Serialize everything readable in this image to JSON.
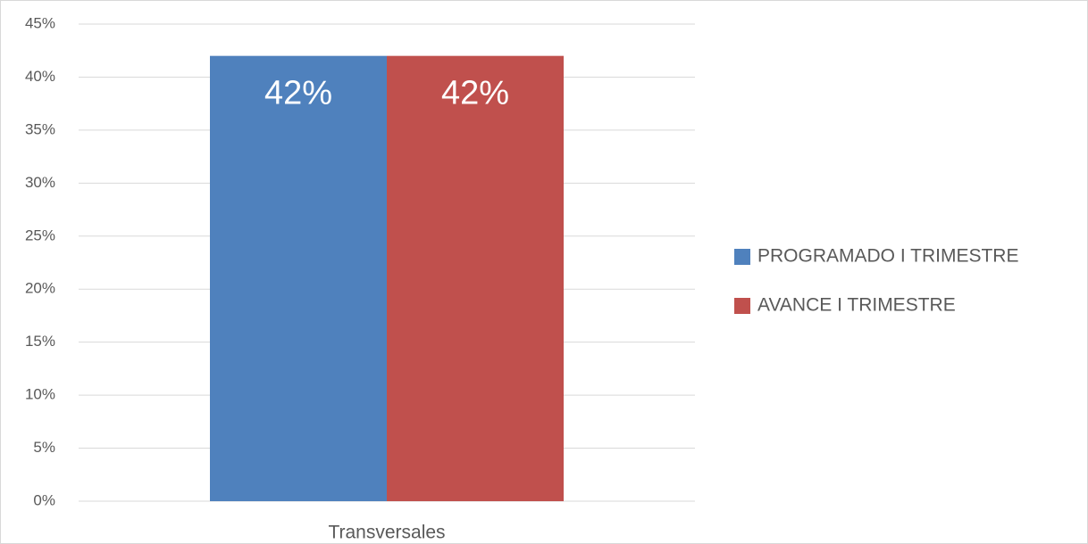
{
  "chart_data": {
    "type": "bar",
    "categories": [
      "Transversales"
    ],
    "series": [
      {
        "name": "PROGRAMADO I TRIMESTRE",
        "color": "#4f81bd",
        "values": [
          42
        ],
        "value_labels": [
          "42%"
        ]
      },
      {
        "name": "AVANCE I TRIMESTRE",
        "color": "#c0504d",
        "values": [
          42
        ],
        "value_labels": [
          "42%"
        ]
      }
    ],
    "ylim": [
      0,
      45
    ],
    "yticks": [
      {
        "value": 0,
        "label": "0%"
      },
      {
        "value": 5,
        "label": "5%"
      },
      {
        "value": 10,
        "label": "10%"
      },
      {
        "value": 15,
        "label": "15%"
      },
      {
        "value": 20,
        "label": "20%"
      },
      {
        "value": 25,
        "label": "25%"
      },
      {
        "value": 30,
        "label": "30%"
      },
      {
        "value": 35,
        "label": "35%"
      },
      {
        "value": 40,
        "label": "40%"
      },
      {
        "value": 45,
        "label": "45%"
      }
    ],
    "grid": true,
    "legend": "right"
  }
}
